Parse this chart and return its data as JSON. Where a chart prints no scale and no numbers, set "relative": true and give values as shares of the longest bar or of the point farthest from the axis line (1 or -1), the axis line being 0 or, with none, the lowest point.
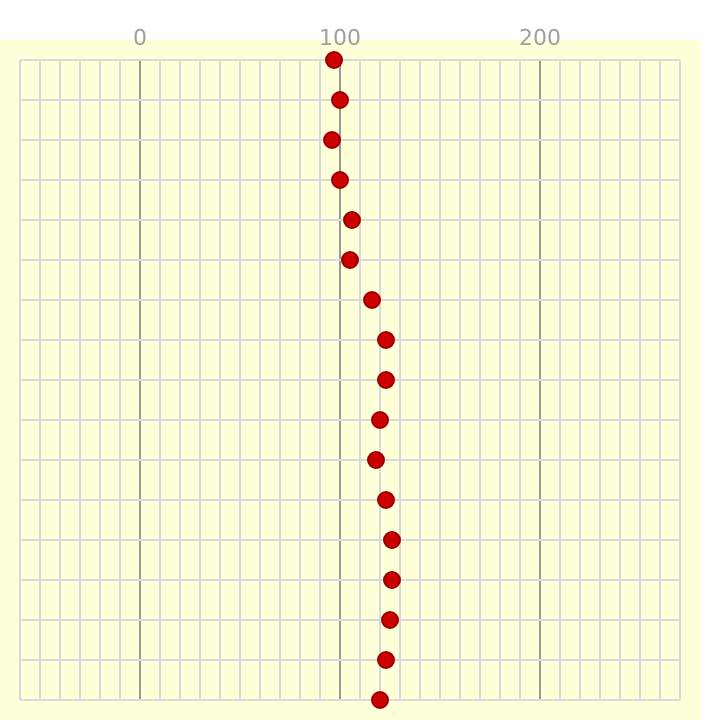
{
  "chart_data": {
    "type": "scatter",
    "relative": true,
    "x": [
      97,
      100,
      96,
      100,
      106,
      105,
      116,
      123,
      123,
      120,
      118,
      123,
      126,
      126,
      125,
      123,
      120
    ],
    "values": [
      1,
      0.9375,
      0.875,
      0.8125,
      0.75,
      0.6875,
      0.625,
      0.5625,
      0.5,
      0.4375,
      0.375,
      0.3125,
      0.25,
      0.1875,
      0.125,
      0.0625,
      0
    ],
    "color": "#cc0000",
    "marker": "circle",
    "grid": true,
    "tick_labels": "x",
    "xlim": [
      -60,
      270
    ],
    "xticks": [
      {
        "value": -60,
        "label": null
      },
      {
        "value": -50,
        "label": null
      },
      {
        "value": -40,
        "label": null
      },
      {
        "value": -30,
        "label": null
      },
      {
        "value": -20,
        "label": null
      },
      {
        "value": -10,
        "label": null
      },
      0,
      {
        "value": 10,
        "label": null
      },
      {
        "value": 20,
        "label": null
      },
      {
        "value": 30,
        "label": null
      },
      {
        "value": 40,
        "label": null
      },
      {
        "value": 50,
        "label": null
      },
      {
        "value": 60,
        "label": null
      },
      {
        "value": 70,
        "label": null
      },
      {
        "value": 80,
        "label": null
      },
      {
        "value": 90,
        "label": null
      },
      100,
      {
        "value": 110,
        "label": null
      },
      {
        "value": 120,
        "label": null
      },
      {
        "value": 130,
        "label": null
      },
      {
        "value": 140,
        "label": null
      },
      {
        "value": 150,
        "label": null
      },
      {
        "value": 160,
        "label": null
      },
      {
        "value": 170,
        "label": null
      },
      {
        "value": 180,
        "label": null
      },
      {
        "value": 190,
        "label": null
      },
      200,
      {
        "value": 210,
        "label": null
      },
      {
        "value": 220,
        "label": null
      },
      {
        "value": 230,
        "label": null
      },
      {
        "value": 240,
        "label": null
      },
      {
        "value": 250,
        "label": null
      },
      {
        "value": 260,
        "label": null
      },
      {
        "value": 270,
        "label": null
      }
    ]
  }
}
